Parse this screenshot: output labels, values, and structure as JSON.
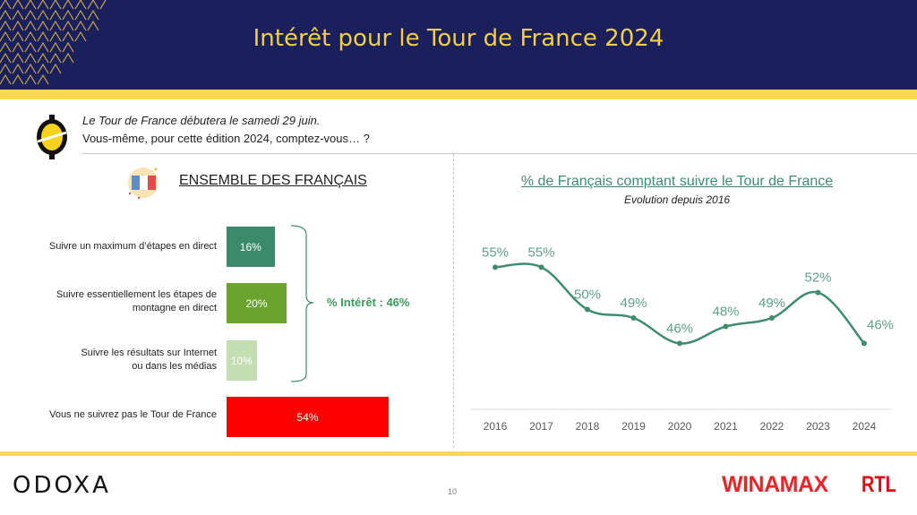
{
  "header": {
    "title": "Intérêt pour le Tour de France 2024"
  },
  "question": {
    "line1": "Le Tour de France débutera le samedi 29 juin.",
    "line2": "Vous-même, pour cette édition 2024, comptez-vous… ?"
  },
  "left_panel": {
    "section_title": "ENSEMBLE DES FRANÇAIS",
    "interest_summary": "% Intérêt : 46%"
  },
  "footer": {
    "odoxa_logo": "ODOXA",
    "page_number": "10",
    "winamax_logo": "WINAMAX",
    "rtl_logo": "RTL"
  },
  "colors": {
    "header_bg": "#1b1f5c",
    "accent_yellow": "#f9d84f",
    "line_green": "#3f8c6e",
    "bar_dark_green": "#3c8a6c",
    "bar_green": "#6aa42f",
    "bar_light_green": "#c3deb0",
    "bar_red": "#ff0000"
  },
  "chart_data": [
    {
      "type": "bar",
      "orientation": "horizontal",
      "title": "ENSEMBLE DES FRANÇAIS",
      "categories": [
        "Suivre un maximum d’étapes en direct",
        "Suivre essentiellement les étapes de montagne en direct",
        "Suivre les résultats sur Internet ou dans les médias",
        "Vous ne suivrez pas le Tour de France"
      ],
      "category_lines": [
        [
          "Suivre un maximum d’étapes en direct"
        ],
        [
          "Suivre essentiellement les étapes de",
          "montagne en direct"
        ],
        [
          "Suivre les résultats sur Internet",
          "ou dans les médias"
        ],
        [
          "Vous ne suivrez pas le Tour de France"
        ]
      ],
      "values": [
        16,
        20,
        10,
        54
      ],
      "labels": [
        "16%",
        "20%",
        "10%",
        "54%"
      ],
      "bar_colors": [
        "#3c8a6c",
        "#6aa42f",
        "#c3deb0",
        "#ff0000"
      ],
      "annotation": "% Intérêt : 46%",
      "xlim": [
        0,
        100
      ]
    },
    {
      "type": "line",
      "title": "% de Français comptant suivre le Tour de France",
      "subtitle": "Evolution depuis 2016",
      "x": [
        "2016",
        "2017",
        "2018",
        "2019",
        "2020",
        "2021",
        "2022",
        "2023",
        "2024"
      ],
      "values": [
        55,
        55,
        50,
        49,
        46,
        48,
        49,
        52,
        46
      ],
      "labels": [
        "55%",
        "55%",
        "50%",
        "49%",
        "46%",
        "48%",
        "49%",
        "52%",
        "46%"
      ],
      "ylim": [
        40,
        58
      ],
      "grid": false,
      "smooth": true
    }
  ]
}
